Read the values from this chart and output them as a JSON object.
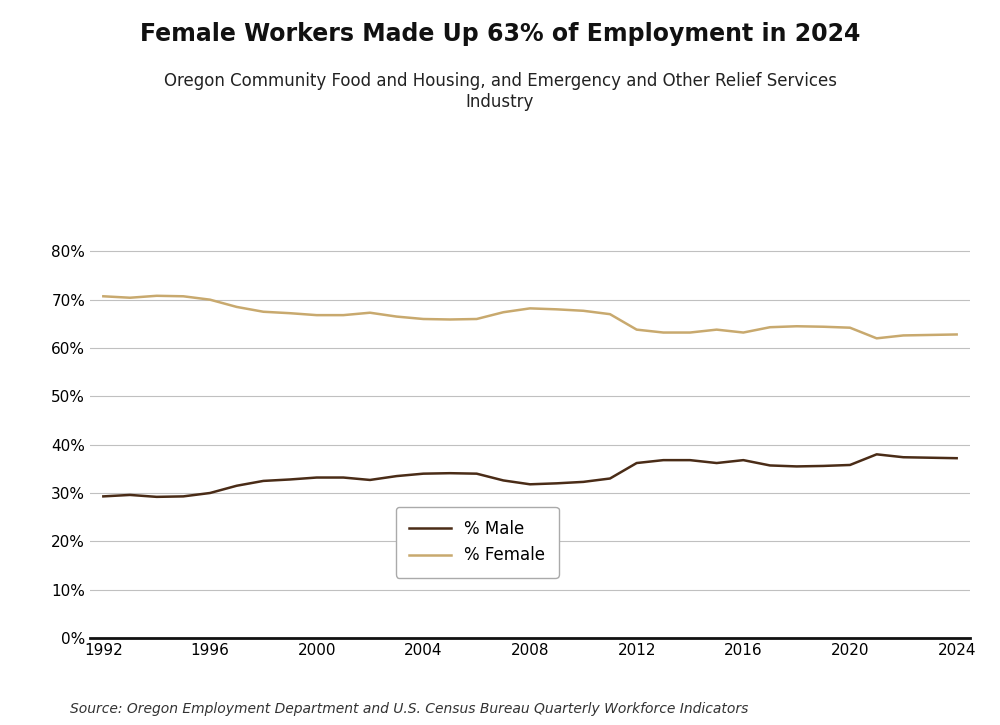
{
  "title": "Female Workers Made Up 63% of Employment in 2024",
  "subtitle": "Oregon Community Food and Housing, and Emergency and Other Relief Services\nIndustry",
  "source": "Source: Oregon Employment Department and U.S. Census Bureau Quarterly Workforce Indicators",
  "male_color": "#4a2c17",
  "female_color": "#c8a96e",
  "male_label": "% Male",
  "female_label": "% Female",
  "years": [
    1992,
    1993,
    1994,
    1995,
    1996,
    1997,
    1998,
    1999,
    2000,
    2001,
    2002,
    2003,
    2004,
    2005,
    2006,
    2007,
    2008,
    2009,
    2010,
    2011,
    2012,
    2013,
    2014,
    2015,
    2016,
    2017,
    2018,
    2019,
    2020,
    2021,
    2022,
    2023,
    2024
  ],
  "male_pct": [
    0.293,
    0.296,
    0.292,
    0.293,
    0.3,
    0.315,
    0.325,
    0.328,
    0.332,
    0.332,
    0.327,
    0.335,
    0.34,
    0.341,
    0.34,
    0.326,
    0.318,
    0.32,
    0.323,
    0.33,
    0.362,
    0.368,
    0.368,
    0.362,
    0.368,
    0.357,
    0.355,
    0.356,
    0.358,
    0.38,
    0.374,
    0.373,
    0.372
  ],
  "female_pct": [
    0.707,
    0.704,
    0.708,
    0.707,
    0.7,
    0.685,
    0.675,
    0.672,
    0.668,
    0.668,
    0.673,
    0.665,
    0.66,
    0.659,
    0.66,
    0.674,
    0.682,
    0.68,
    0.677,
    0.67,
    0.638,
    0.632,
    0.632,
    0.638,
    0.632,
    0.643,
    0.645,
    0.644,
    0.642,
    0.62,
    0.626,
    0.627,
    0.628
  ],
  "xlim": [
    1991.5,
    2024.5
  ],
  "ylim": [
    0.0,
    0.9
  ],
  "yticks": [
    0.0,
    0.1,
    0.2,
    0.3,
    0.4,
    0.5,
    0.6,
    0.7,
    0.8
  ],
  "xticks": [
    1992,
    1996,
    2000,
    2004,
    2008,
    2012,
    2016,
    2020,
    2024
  ],
  "line_width": 1.8,
  "title_fontsize": 17,
  "subtitle_fontsize": 12,
  "legend_fontsize": 12,
  "tick_fontsize": 11,
  "source_fontsize": 10,
  "background_color": "#ffffff",
  "grid_color": "#c0c0c0"
}
